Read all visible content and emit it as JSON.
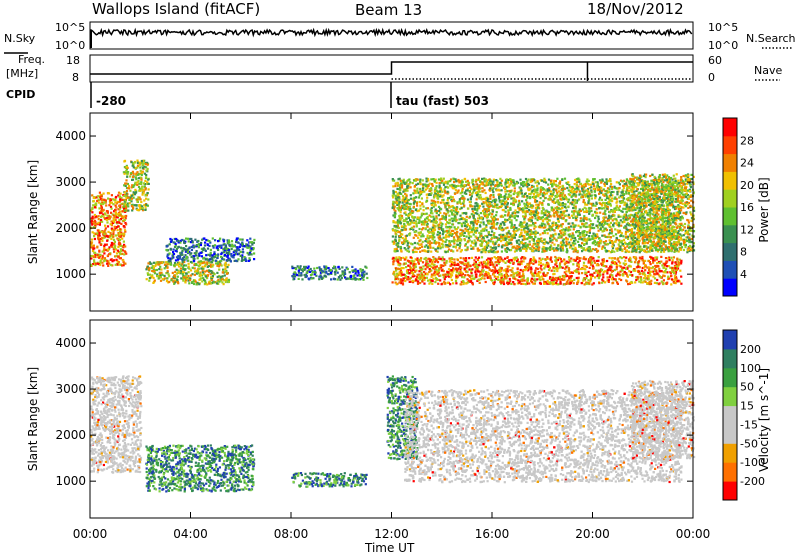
{
  "header": {
    "title": "Wallops Island (fitACF)",
    "beam": "Beam 13",
    "date": "18/Nov/2012"
  },
  "top_panel": {
    "nsky_label": "N.Sky",
    "nsearch_label": "N.Search",
    "y_ticks_left": [
      "10^5",
      "10^0"
    ],
    "y_ticks_right": [
      "10^5",
      "10^0"
    ]
  },
  "freq_panel": {
    "freq_label": "Freq.",
    "freq_unit": "[MHz]",
    "nave_label": "Nave",
    "y_ticks_left": [
      "18",
      "8"
    ],
    "y_ticks_right": [
      "60",
      "0"
    ]
  },
  "cpid": {
    "label": "CPID",
    "segments": [
      {
        "text": "-280",
        "start_hour": 0
      },
      {
        "text": "tau (fast) 503",
        "start_hour": 12
      }
    ]
  },
  "colors": {
    "power": [
      "#0000ff",
      "#1f4fb5",
      "#2f6f6f",
      "#3a9050",
      "#5fc030",
      "#a0d020",
      "#f0c000",
      "#f08000",
      "#ff4000",
      "#ff0000"
    ],
    "velocity": [
      "#2040b0",
      "#2f7f60",
      "#3aa040",
      "#80d040",
      "#c8c8c8",
      "#c8c8c8",
      "#f0a000",
      "#ff7000",
      "#ff0000"
    ],
    "frame": "#000000"
  },
  "chart_data": [
    {
      "type": "heatmap",
      "name": "power-panel",
      "ylabel": "Slant Range [km]",
      "xlabel": "",
      "x_ticks": [
        "00:00",
        "04:00",
        "08:00",
        "12:00",
        "16:00",
        "20:00",
        "00:00"
      ],
      "x_range_hours": [
        0,
        24
      ],
      "y_ticks": [
        "1000",
        "2000",
        "3000",
        "4000"
      ],
      "ylim": [
        200,
        4500
      ],
      "colorbar": {
        "label": "Power [dB]",
        "ticks": [
          "4",
          "8",
          "12",
          "16",
          "20",
          "24",
          "28"
        ]
      },
      "features": [
        {
          "t0": 0.0,
          "t1": 1.4,
          "r0": 1200,
          "r1": 2800,
          "level": "high"
        },
        {
          "t0": 1.3,
          "t1": 2.3,
          "r0": 2400,
          "r1": 3500,
          "level": "mid"
        },
        {
          "t0": 2.2,
          "t1": 5.5,
          "r0": 800,
          "r1": 1300,
          "level": "mid"
        },
        {
          "t0": 3.0,
          "t1": 6.5,
          "r0": 1300,
          "r1": 1800,
          "level": "low"
        },
        {
          "t0": 8.0,
          "t1": 11.0,
          "r0": 900,
          "r1": 1200,
          "level": "low"
        },
        {
          "t0": 12.0,
          "t1": 23.5,
          "r0": 800,
          "r1": 1400,
          "level": "high"
        },
        {
          "t0": 12.0,
          "t1": 23.5,
          "r0": 1500,
          "r1": 3100,
          "level": "mid"
        },
        {
          "t0": 21.5,
          "t1": 24.0,
          "r0": 1500,
          "r1": 3200,
          "level": "mid"
        }
      ]
    },
    {
      "type": "heatmap",
      "name": "velocity-panel",
      "ylabel": "Slant Range [km]",
      "xlabel": "Time UT",
      "x_ticks": [
        "00:00",
        "04:00",
        "08:00",
        "12:00",
        "16:00",
        "20:00",
        "00:00"
      ],
      "x_range_hours": [
        0,
        24
      ],
      "y_ticks": [
        "1000",
        "2000",
        "3000",
        "4000"
      ],
      "ylim": [
        200,
        4500
      ],
      "colorbar": {
        "label": "Velocity [m s^-1]",
        "ticks": [
          "200",
          "100",
          "50",
          "15",
          "-15",
          "-50",
          "-100",
          "-200"
        ]
      },
      "features": [
        {
          "t0": 0.0,
          "t1": 2.0,
          "r0": 1200,
          "r1": 3300,
          "level": "zero"
        },
        {
          "t0": 2.2,
          "t1": 6.5,
          "r0": 800,
          "r1": 1800,
          "level": "pos"
        },
        {
          "t0": 8.0,
          "t1": 11.0,
          "r0": 900,
          "r1": 1200,
          "level": "pos"
        },
        {
          "t0": 11.8,
          "t1": 13.0,
          "r0": 1500,
          "r1": 3300,
          "level": "pos"
        },
        {
          "t0": 12.5,
          "t1": 23.5,
          "r0": 1000,
          "r1": 3000,
          "level": "zero"
        },
        {
          "t0": 21.5,
          "t1": 24.0,
          "r0": 1500,
          "r1": 3200,
          "level": "zero"
        }
      ]
    }
  ]
}
